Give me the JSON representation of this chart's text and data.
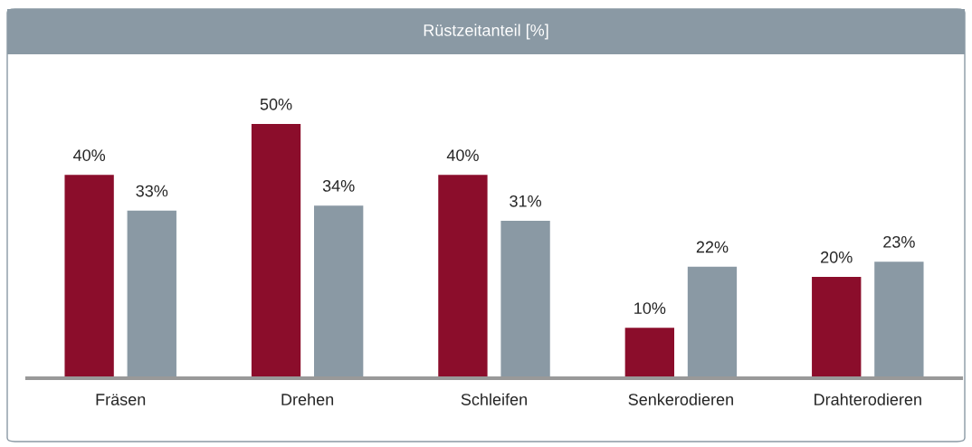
{
  "chart_data": {
    "type": "bar",
    "title": "Rüstzeitanteil [%]",
    "categories": [
      "Fräsen",
      "Drehen",
      "Schleifen",
      "Senkerodieren",
      "Drahterodieren"
    ],
    "series": [
      {
        "color": "#8b0d2b",
        "values": [
          40,
          50,
          40,
          10,
          20
        ],
        "value_labels": [
          "40%",
          "50%",
          "40%",
          "10%",
          "20%"
        ]
      },
      {
        "color": "#8a99a4",
        "values": [
          33,
          34,
          31,
          22,
          23
        ],
        "value_labels": [
          "33%",
          "34%",
          "31%",
          "22%",
          "23%"
        ]
      }
    ],
    "grid": false,
    "legend": false
  }
}
